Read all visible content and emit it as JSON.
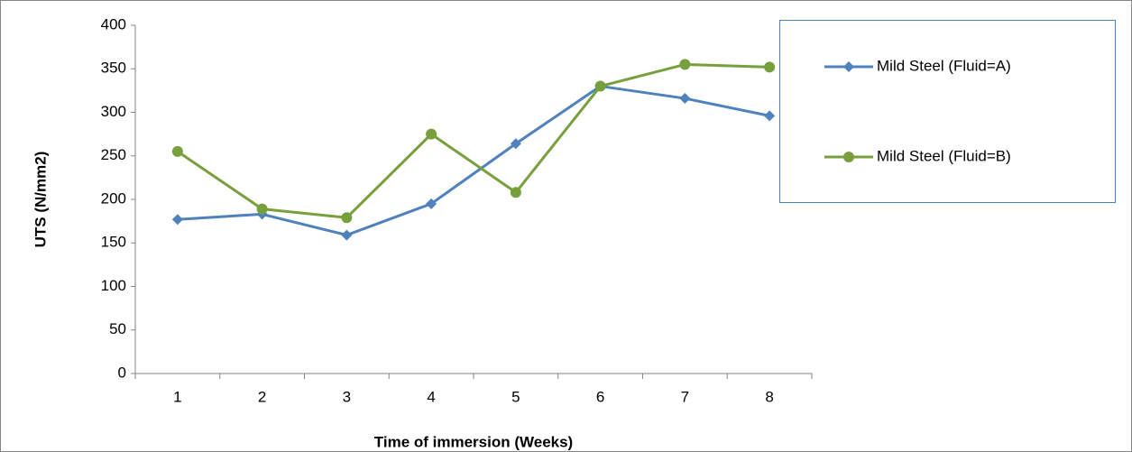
{
  "chart_data": {
    "type": "line",
    "x_label": "Time of immersion (Weeks)",
    "y_label": "UTS (N/mm2)",
    "categories": [
      "1",
      "2",
      "3",
      "4",
      "5",
      "6",
      "7",
      "8"
    ],
    "series": [
      {
        "name": "Mild Steel (Fluid=A)",
        "color": "#4f81bd",
        "marker": "diamond",
        "values": [
          177,
          183,
          159,
          195,
          264,
          330,
          316,
          296
        ]
      },
      {
        "name": "Mild Steel (Fluid=B)",
        "color": "#77a03c",
        "marker": "circle",
        "values": [
          255,
          189,
          179,
          275,
          208,
          330,
          355,
          352
        ]
      }
    ],
    "ylim": [
      0,
      400
    ],
    "yticks": [
      0,
      50,
      100,
      150,
      200,
      250,
      300,
      350,
      400
    ],
    "grid": false,
    "legend": "right"
  }
}
